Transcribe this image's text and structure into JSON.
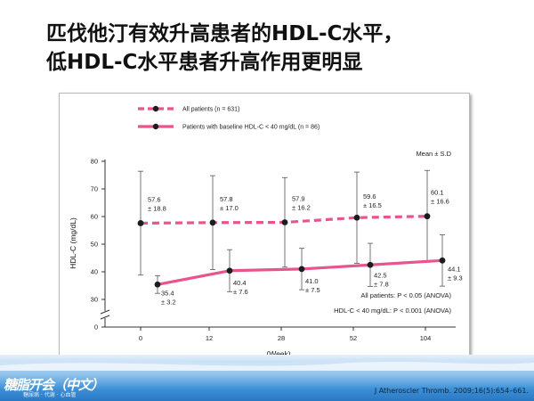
{
  "slide": {
    "title_lines": [
      "匹伐他汀有效升高患者的HDL-C水平，",
      "低HDL-C水平患者升高作用更明显"
    ],
    "citation": "J Atheroscler Thromb. 2009;16(5):654–661.",
    "logo": {
      "main": "糖脂开会（中文）",
      "sub": "糖尿病 · 代谢 · 心血管"
    }
  },
  "chart_data": {
    "type": "line",
    "xlabel": "(Week)",
    "ylabel": "HDL-C (mg/dL)",
    "x_ticks": [
      "0",
      "12",
      "28",
      "52",
      "104"
    ],
    "y_ticks": [
      0,
      30,
      40,
      50,
      60,
      70,
      80
    ],
    "ylim": [
      0,
      80
    ],
    "y_axis_break": true,
    "mean_note": "Mean ± S.D",
    "series": [
      {
        "name": "All patients (n = 631)",
        "style": "dashed",
        "color": "#e8558e",
        "x": [
          "0",
          "12",
          "28",
          "52",
          "104"
        ],
        "values": [
          57.6,
          57.8,
          57.9,
          59.6,
          60.1
        ],
        "sd": [
          18.8,
          17.0,
          16.2,
          16.5,
          16.6
        ],
        "labels": [
          [
            "57.6",
            "± 18.8"
          ],
          [
            "57.8",
            "± 17.0"
          ],
          [
            "57.9",
            "± 16.2"
          ],
          [
            "59.6",
            "± 16.5"
          ],
          [
            "60.1",
            "± 16.6"
          ]
        ]
      },
      {
        "name": "Patients with baseline HDL-C < 40 mg/dL (n = 86)",
        "style": "solid",
        "color": "#e8558e",
        "x": [
          "0",
          "12",
          "28",
          "52",
          "104"
        ],
        "values": [
          35.4,
          40.4,
          41.0,
          42.5,
          44.1
        ],
        "sd": [
          3.2,
          7.6,
          7.5,
          7.8,
          9.3
        ],
        "labels": [
          [
            "35.4",
            "± 3.2"
          ],
          [
            "40.4",
            "± 7.6"
          ],
          [
            "41.0",
            "± 7.5"
          ],
          [
            "42.5",
            "± 7.8"
          ],
          [
            "44.1",
            "± 9.3"
          ]
        ]
      }
    ],
    "annotations": [
      "All patients: P < 0.05 (ANOVA)",
      "HDL-C < 40 mg/dL: P < 0.001 (ANOVA)"
    ]
  }
}
